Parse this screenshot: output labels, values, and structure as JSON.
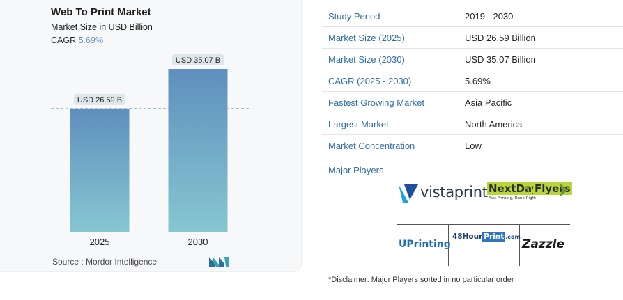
{
  "header": {
    "title": "Web To Print Market",
    "subtitle": "Market Size in USD Billion",
    "cagr_label": "CAGR",
    "cagr_value": "5.69%"
  },
  "chart_data": {
    "type": "bar",
    "categories": [
      "2025",
      "2030"
    ],
    "values": [
      26.59,
      35.07
    ],
    "data_labels": [
      "USD 26.59 B",
      "USD 35.07 B"
    ],
    "title": "Web To Print Market",
    "subtitle": "Market Size in USD Billion",
    "ylim": [
      0,
      40
    ],
    "reference_line": 26.59,
    "grid": false,
    "bar_gradient": [
      "#5f8fbd",
      "#86c7d1"
    ]
  },
  "source": {
    "label": "Source :",
    "value": "Mordor Intelligence"
  },
  "table": [
    {
      "key": "Study Period",
      "value": "2019 - 2030"
    },
    {
      "key": "Market Size (2025)",
      "value": "USD 26.59 Billion"
    },
    {
      "key": "Market Size (2030)",
      "value": "USD 35.07 Billion"
    },
    {
      "key": "CAGR (2025 - 2030)",
      "value": "5.69%"
    },
    {
      "key": "Fastest Growing Market",
      "value": "Asia Pacific"
    },
    {
      "key": "Largest Market",
      "value": "North America"
    },
    {
      "key": "Market Concentration",
      "value": "Low"
    }
  ],
  "players": {
    "label": "Major Players",
    "logos": {
      "vistaprint": "vistaprint",
      "nextday_a": "NextDay",
      "nextday_b": "Flyers",
      "nextday_tag": "Fast Printing, Done Right",
      "uprinting": "UPrinting",
      "hour48_a": "48Hour",
      "hour48_b": "Print",
      "hour48_c": ".com",
      "zazzle": "Zazzle"
    }
  },
  "disclaimer": "*Disclaimer: Major Players sorted in no particular order",
  "colors": {
    "accent": "#2d6ea8",
    "cagr": "#5b8fb9"
  }
}
